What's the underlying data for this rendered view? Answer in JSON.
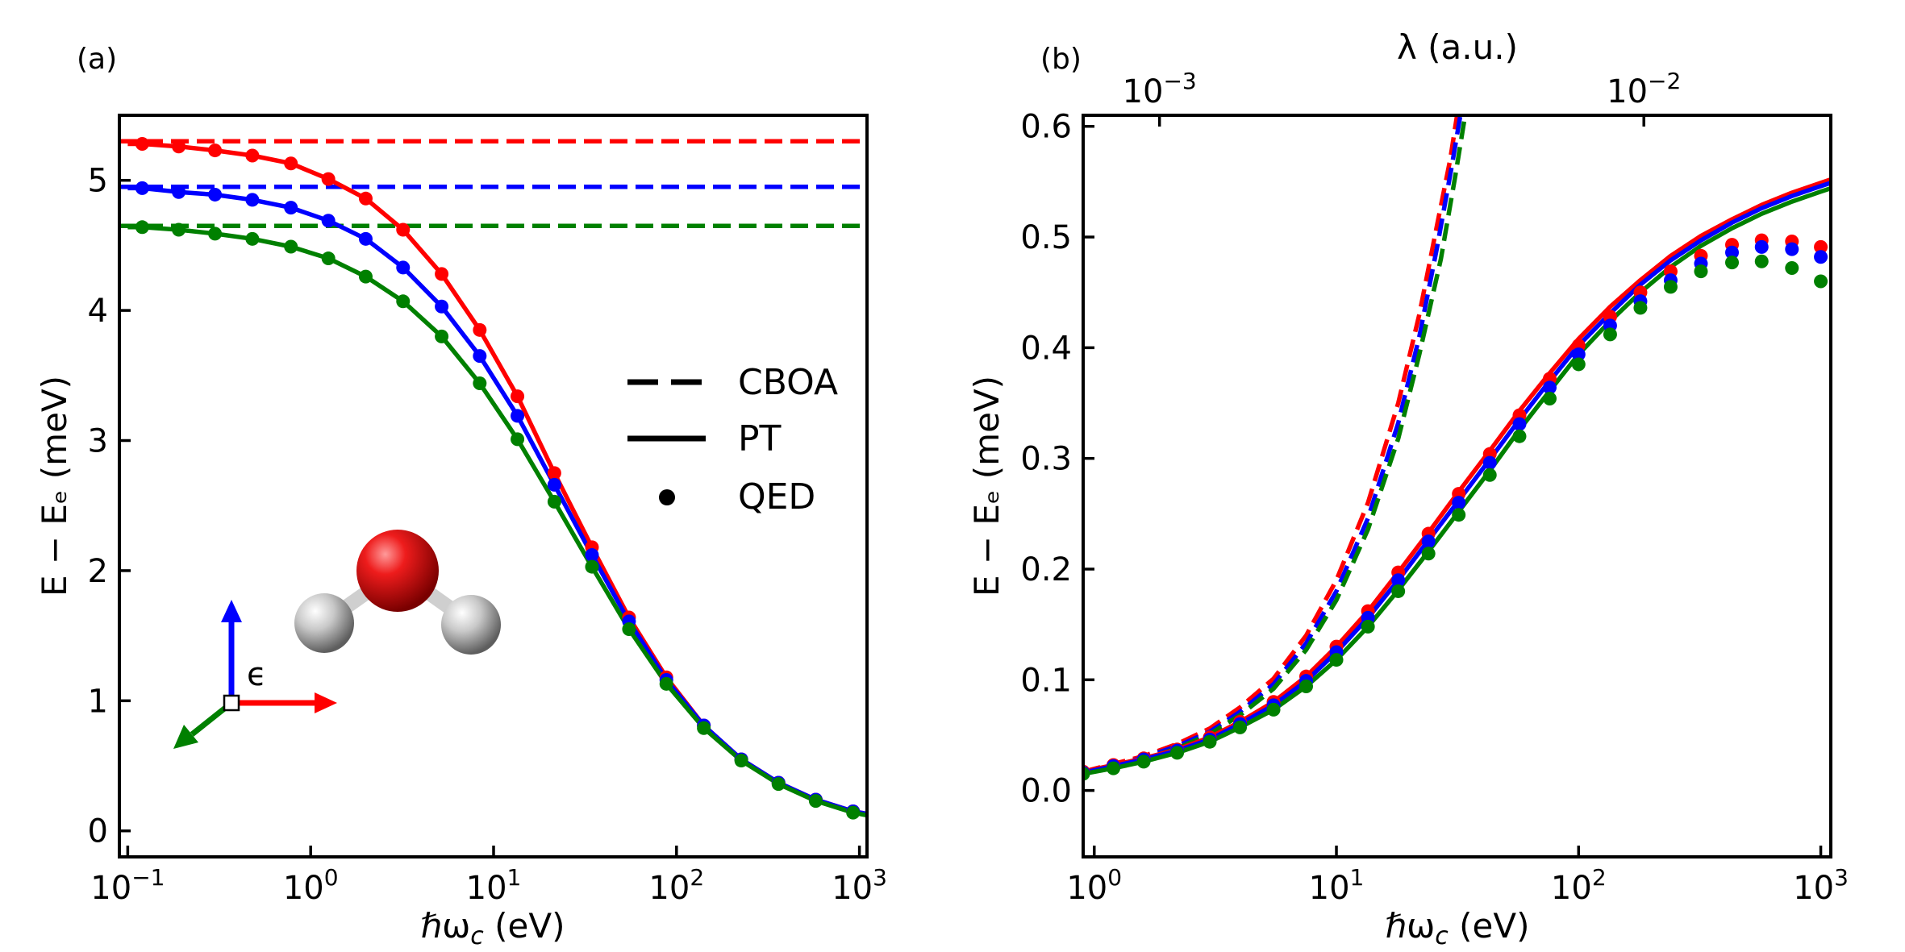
{
  "figure": {
    "legend": [
      {
        "label": "CBOA",
        "style": "dashed"
      },
      {
        "label": "PT",
        "style": "solid"
      },
      {
        "label": "QED",
        "style": "dots"
      }
    ],
    "epsilon_label": "ϵ",
    "colors": {
      "x": "#ff0000",
      "y": "#0000ff",
      "z": "#008000"
    }
  },
  "chart_data": [
    {
      "type": "line",
      "panel": "(a)",
      "panel_label": "(a)",
      "xlabel_pre": "ℏω",
      "xlabel_sub": "c",
      "xlabel_post": " (eV)",
      "ylabel": "E − Eₑ (meV)",
      "xscale": "log",
      "xlim": [
        0.09,
        1100
      ],
      "ylim": [
        -0.2,
        5.5
      ],
      "xticks": [
        {
          "base": "10",
          "exp": "−1",
          "value": 0.1
        },
        {
          "base": "10",
          "exp": "0",
          "value": 1
        },
        {
          "base": "10",
          "exp": "1",
          "value": 10
        },
        {
          "base": "10",
          "exp": "2",
          "value": 100
        },
        {
          "base": "10",
          "exp": "3",
          "value": 1000
        }
      ],
      "yticks": [
        {
          "label": "0",
          "value": 0
        },
        {
          "label": "1",
          "value": 1
        },
        {
          "label": "2",
          "value": 2
        },
        {
          "label": "3",
          "value": 3
        },
        {
          "label": "4",
          "value": 4
        },
        {
          "label": "5",
          "value": 5
        }
      ],
      "series": [
        {
          "name": "CBOA x",
          "color": "#ff0000",
          "style": "dashed",
          "x": [
            0.09,
            1100
          ],
          "y": [
            5.3,
            5.3
          ]
        },
        {
          "name": "CBOA y",
          "color": "#0000ff",
          "style": "dashed",
          "x": [
            0.09,
            1100
          ],
          "y": [
            4.95,
            4.95
          ]
        },
        {
          "name": "CBOA z",
          "color": "#008000",
          "style": "dashed",
          "x": [
            0.09,
            1100
          ],
          "y": [
            4.65,
            4.65
          ]
        },
        {
          "name": "PT x",
          "color": "#ff0000",
          "style": "solid",
          "x": [
            0.1,
            0.12,
            0.19,
            0.3,
            0.48,
            0.78,
            1.25,
            2.0,
            3.2,
            5.2,
            8.4,
            13.5,
            21.5,
            34.5,
            55,
            88,
            141,
            226,
            361,
            577,
            923,
            1100
          ],
          "y": [
            5.28,
            5.28,
            5.26,
            5.23,
            5.19,
            5.13,
            5.01,
            4.86,
            4.62,
            4.28,
            3.85,
            3.34,
            2.75,
            2.18,
            1.64,
            1.18,
            0.81,
            0.55,
            0.37,
            0.24,
            0.15,
            0.13
          ]
        },
        {
          "name": "PT y",
          "color": "#0000ff",
          "style": "solid",
          "x": [
            0.1,
            0.12,
            0.19,
            0.3,
            0.48,
            0.78,
            1.25,
            2.0,
            3.2,
            5.2,
            8.4,
            13.5,
            21.5,
            34.5,
            55,
            88,
            141,
            226,
            361,
            577,
            923,
            1100
          ],
          "y": [
            4.94,
            4.94,
            4.91,
            4.89,
            4.85,
            4.79,
            4.69,
            4.55,
            4.33,
            4.03,
            3.65,
            3.19,
            2.66,
            2.12,
            1.61,
            1.16,
            0.81,
            0.55,
            0.37,
            0.24,
            0.15,
            0.13
          ]
        },
        {
          "name": "PT z",
          "color": "#008000",
          "style": "solid",
          "x": [
            0.1,
            0.12,
            0.19,
            0.3,
            0.48,
            0.78,
            1.25,
            2.0,
            3.2,
            5.2,
            8.4,
            13.5,
            21.5,
            34.5,
            55,
            88,
            141,
            226,
            361,
            577,
            923,
            1100
          ],
          "y": [
            4.64,
            4.64,
            4.62,
            4.59,
            4.55,
            4.49,
            4.4,
            4.26,
            4.07,
            3.8,
            3.44,
            3.01,
            2.53,
            2.03,
            1.55,
            1.13,
            0.79,
            0.54,
            0.36,
            0.23,
            0.14,
            0.12
          ]
        },
        {
          "name": "QED x",
          "color": "#ff0000",
          "style": "dots",
          "x": [
            0.12,
            0.19,
            0.3,
            0.48,
            0.78,
            1.25,
            2.0,
            3.2,
            5.2,
            8.4,
            13.5,
            21.5,
            34.5,
            55,
            88,
            141,
            226,
            361,
            577,
            923
          ],
          "y": [
            5.28,
            5.26,
            5.23,
            5.19,
            5.13,
            5.01,
            4.86,
            4.62,
            4.28,
            3.85,
            3.34,
            2.75,
            2.18,
            1.64,
            1.18,
            0.81,
            0.55,
            0.37,
            0.24,
            0.15
          ]
        },
        {
          "name": "QED y",
          "color": "#0000ff",
          "style": "dots",
          "x": [
            0.12,
            0.19,
            0.3,
            0.48,
            0.78,
            1.25,
            2.0,
            3.2,
            5.2,
            8.4,
            13.5,
            21.5,
            34.5,
            55,
            88,
            141,
            226,
            361,
            577,
            923
          ],
          "y": [
            4.94,
            4.91,
            4.89,
            4.85,
            4.79,
            4.69,
            4.55,
            4.33,
            4.03,
            3.65,
            3.19,
            2.66,
            2.12,
            1.61,
            1.16,
            0.81,
            0.55,
            0.37,
            0.24,
            0.15
          ]
        },
        {
          "name": "QED z",
          "color": "#008000",
          "style": "dots",
          "x": [
            0.12,
            0.19,
            0.3,
            0.48,
            0.78,
            1.25,
            2.0,
            3.2,
            5.2,
            8.4,
            13.5,
            21.5,
            34.5,
            55,
            88,
            141,
            226,
            361,
            577,
            923
          ],
          "y": [
            4.64,
            4.62,
            4.59,
            4.55,
            4.49,
            4.4,
            4.26,
            4.07,
            3.8,
            3.44,
            3.01,
            2.53,
            2.03,
            1.55,
            1.13,
            0.79,
            0.54,
            0.36,
            0.23,
            0.14
          ]
        }
      ]
    },
    {
      "type": "line",
      "panel": "(b)",
      "panel_label": "(b)",
      "xlabel_pre": "ℏω",
      "xlabel_sub": "c",
      "xlabel_post": " (eV)",
      "ylabel": "E − Eₑ (meV)",
      "top_xlabel": "λ (a.u.)",
      "top_xticks": [
        {
          "base": "10",
          "exp": "−3",
          "x_equiv": 1.86
        },
        {
          "base": "10",
          "exp": "−2",
          "x_equiv": 186
        }
      ],
      "xscale": "log",
      "xlim": [
        0.9,
        1100
      ],
      "ylim": [
        -0.06,
        0.61
      ],
      "xticks": [
        {
          "base": "10",
          "exp": "0",
          "value": 1
        },
        {
          "base": "10",
          "exp": "1",
          "value": 10
        },
        {
          "base": "10",
          "exp": "2",
          "value": 100
        },
        {
          "base": "10",
          "exp": "3",
          "value": 1000
        }
      ],
      "yticks": [
        {
          "label": "0.0",
          "value": 0.0
        },
        {
          "label": "0.1",
          "value": 0.1
        },
        {
          "label": "0.2",
          "value": 0.2
        },
        {
          "label": "0.3",
          "value": 0.3
        },
        {
          "label": "0.4",
          "value": 0.4
        },
        {
          "label": "0.5",
          "value": 0.5
        },
        {
          "label": "0.6",
          "value": 0.6
        }
      ],
      "series": [
        {
          "name": "CBOA x",
          "color": "#ff0000",
          "style": "dashed",
          "x": [
            0.9,
            1.2,
            1.6,
            2.2,
            3.0,
            4.0,
            5.5,
            7.5,
            10,
            13.5,
            18,
            22,
            26,
            29.5,
            31.5
          ],
          "y": [
            0.017,
            0.024,
            0.031,
            0.042,
            0.056,
            0.075,
            0.101,
            0.14,
            0.19,
            0.26,
            0.35,
            0.43,
            0.51,
            0.57,
            0.61
          ]
        },
        {
          "name": "CBOA y",
          "color": "#0000ff",
          "style": "dashed",
          "x": [
            0.9,
            1.2,
            1.6,
            2.2,
            3.0,
            4.0,
            5.5,
            7.5,
            10,
            13.5,
            18,
            22,
            26,
            30,
            32.5
          ],
          "y": [
            0.016,
            0.022,
            0.03,
            0.04,
            0.053,
            0.071,
            0.096,
            0.133,
            0.18,
            0.246,
            0.332,
            0.41,
            0.49,
            0.565,
            0.61
          ]
        },
        {
          "name": "CBOA z",
          "color": "#008000",
          "style": "dashed",
          "x": [
            0.9,
            1.2,
            1.6,
            2.2,
            3.0,
            4.0,
            5.5,
            7.5,
            10,
            13.5,
            18,
            22,
            27,
            31,
            34
          ],
          "y": [
            0.015,
            0.021,
            0.028,
            0.038,
            0.051,
            0.068,
            0.092,
            0.127,
            0.172,
            0.236,
            0.318,
            0.394,
            0.48,
            0.556,
            0.61
          ]
        },
        {
          "name": "PT x",
          "color": "#ff0000",
          "style": "solid",
          "x": [
            0.9,
            1.2,
            1.6,
            2.2,
            3.0,
            4.0,
            5.5,
            7.5,
            10,
            13.5,
            18,
            24,
            32,
            43,
            57,
            76,
            100,
            135,
            180,
            240,
            320,
            430,
            570,
            760,
            1000,
            1100
          ],
          "y": [
            0.017,
            0.023,
            0.029,
            0.037,
            0.048,
            0.062,
            0.08,
            0.103,
            0.13,
            0.162,
            0.197,
            0.233,
            0.27,
            0.307,
            0.343,
            0.377,
            0.408,
            0.437,
            0.461,
            0.483,
            0.501,
            0.516,
            0.529,
            0.54,
            0.549,
            0.552
          ]
        },
        {
          "name": "PT y",
          "color": "#0000ff",
          "style": "solid",
          "x": [
            0.9,
            1.2,
            1.6,
            2.2,
            3.0,
            4.0,
            5.5,
            7.5,
            10,
            13.5,
            18,
            24,
            32,
            43,
            57,
            76,
            100,
            135,
            180,
            240,
            320,
            430,
            570,
            760,
            1000,
            1100
          ],
          "y": [
            0.016,
            0.022,
            0.028,
            0.036,
            0.046,
            0.06,
            0.077,
            0.099,
            0.125,
            0.156,
            0.19,
            0.226,
            0.262,
            0.299,
            0.335,
            0.37,
            0.402,
            0.431,
            0.457,
            0.479,
            0.497,
            0.513,
            0.526,
            0.537,
            0.546,
            0.549
          ]
        },
        {
          "name": "PT z",
          "color": "#008000",
          "style": "solid",
          "x": [
            0.9,
            1.2,
            1.6,
            2.2,
            3.0,
            4.0,
            5.5,
            7.5,
            10,
            13.5,
            18,
            24,
            32,
            43,
            57,
            76,
            100,
            135,
            180,
            240,
            320,
            430,
            570,
            760,
            1000,
            1100
          ],
          "y": [
            0.015,
            0.02,
            0.026,
            0.034,
            0.044,
            0.057,
            0.073,
            0.094,
            0.118,
            0.148,
            0.181,
            0.216,
            0.252,
            0.289,
            0.326,
            0.361,
            0.394,
            0.424,
            0.45,
            0.473,
            0.492,
            0.508,
            0.521,
            0.532,
            0.541,
            0.544
          ]
        },
        {
          "name": "QED x",
          "color": "#ff0000",
          "style": "dots",
          "x": [
            0.9,
            1.2,
            1.6,
            2.2,
            3.0,
            4.0,
            5.5,
            7.5,
            10,
            13.5,
            18,
            24,
            32,
            43,
            57,
            76,
            100,
            135,
            180,
            240,
            320,
            430,
            570,
            760,
            1000
          ],
          "y": [
            0.017,
            0.023,
            0.029,
            0.037,
            0.048,
            0.062,
            0.08,
            0.103,
            0.13,
            0.162,
            0.197,
            0.232,
            0.268,
            0.304,
            0.339,
            0.372,
            0.402,
            0.428,
            0.45,
            0.469,
            0.483,
            0.493,
            0.497,
            0.496,
            0.491
          ]
        },
        {
          "name": "QED y",
          "color": "#0000ff",
          "style": "dots",
          "x": [
            0.9,
            1.2,
            1.6,
            2.2,
            3.0,
            4.0,
            5.5,
            7.5,
            10,
            13.5,
            18,
            24,
            32,
            43,
            57,
            76,
            100,
            135,
            180,
            240,
            320,
            430,
            570,
            760,
            1000
          ],
          "y": [
            0.016,
            0.022,
            0.028,
            0.036,
            0.046,
            0.06,
            0.077,
            0.099,
            0.125,
            0.156,
            0.19,
            0.225,
            0.26,
            0.296,
            0.331,
            0.364,
            0.394,
            0.42,
            0.442,
            0.461,
            0.476,
            0.486,
            0.491,
            0.489,
            0.482
          ]
        },
        {
          "name": "QED z",
          "color": "#008000",
          "style": "dots",
          "x": [
            0.9,
            1.2,
            1.6,
            2.2,
            3.0,
            4.0,
            5.5,
            7.5,
            10,
            13.5,
            18,
            24,
            32,
            43,
            57,
            76,
            100,
            135,
            180,
            240,
            320,
            430,
            570,
            760,
            1000
          ],
          "y": [
            0.015,
            0.02,
            0.026,
            0.034,
            0.044,
            0.057,
            0.073,
            0.094,
            0.118,
            0.148,
            0.18,
            0.214,
            0.249,
            0.285,
            0.32,
            0.354,
            0.385,
            0.412,
            0.436,
            0.455,
            0.469,
            0.477,
            0.478,
            0.472,
            0.46
          ]
        }
      ]
    }
  ]
}
